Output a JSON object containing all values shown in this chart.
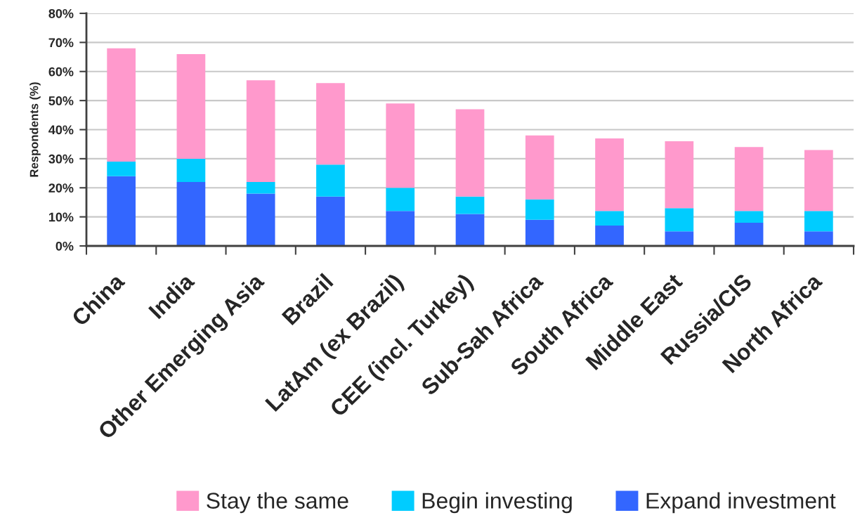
{
  "chart_data": {
    "type": "bar",
    "stacked": true,
    "categories": [
      "China",
      "India",
      "Other Emerging Asia",
      "Brazil",
      "LatAm (ex Brazil)",
      "CEE (incl. Turkey)",
      "Sub-Sah Africa",
      "South Africa",
      "Middle East",
      "Russia/CIS",
      "North Africa"
    ],
    "series": [
      {
        "name": "Expand investment",
        "color": "#3366ff",
        "values": [
          24,
          22,
          18,
          17,
          12,
          11,
          9,
          7,
          5,
          8,
          5
        ]
      },
      {
        "name": "Begin investing",
        "color": "#00ccff",
        "values": [
          5,
          8,
          4,
          11,
          8,
          6,
          7,
          5,
          8,
          4,
          7
        ]
      },
      {
        "name": "Stay the same",
        "color": "#ff99cc",
        "values": [
          39,
          36,
          35,
          28,
          29,
          30,
          22,
          25,
          23,
          22,
          21
        ]
      }
    ],
    "ylabel": "Respondents (%)",
    "ylim": [
      0,
      80
    ],
    "yticks": [
      {
        "value": 0,
        "label": "0%"
      },
      {
        "value": 10,
        "label": "10%"
      },
      {
        "value": 20,
        "label": "20%"
      },
      {
        "value": 30,
        "label": "30%"
      },
      {
        "value": 40,
        "label": "40%"
      },
      {
        "value": 50,
        "label": "50%"
      },
      {
        "value": 60,
        "label": "60%"
      },
      {
        "value": 70,
        "label": "70%"
      },
      {
        "value": 80,
        "label": "80%"
      }
    ],
    "grid": "y",
    "legend": "bottom"
  }
}
